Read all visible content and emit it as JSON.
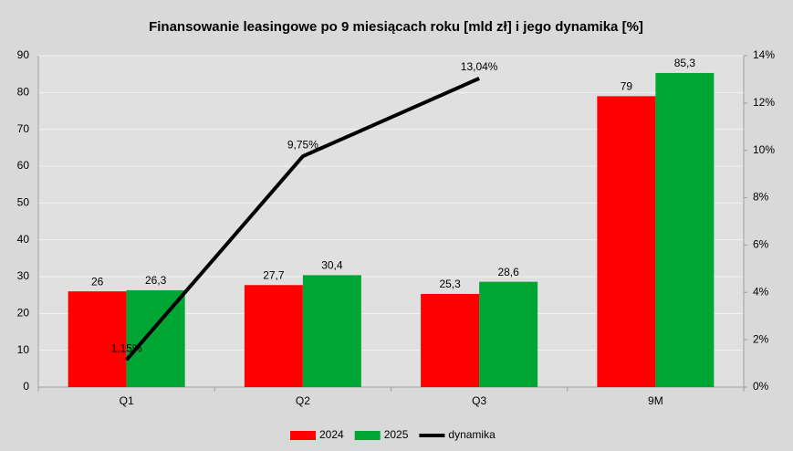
{
  "chart_data": {
    "type": "bar",
    "title": "Finansowanie leasingowe po 9 miesiącach roku [mld zł] i jego dynamika [%]",
    "categories": [
      "Q1",
      "Q2",
      "Q3",
      "9M"
    ],
    "series": [
      {
        "name": "2024",
        "color": "#ff0000",
        "values": [
          26,
          27.7,
          25.3,
          79
        ],
        "value_labels": [
          "26",
          "27,7",
          "25,3",
          "79"
        ]
      },
      {
        "name": "2025",
        "color": "#00a633",
        "values": [
          26.3,
          30.4,
          28.6,
          85.3
        ],
        "value_labels": [
          "26,3",
          "30,4",
          "28,6",
          "85,3"
        ]
      },
      {
        "name": "dynamika",
        "type": "line",
        "axis": "y2",
        "color": "#000000",
        "values": [
          1.15,
          9.75,
          13.04,
          null
        ],
        "value_labels": [
          "1,15%",
          "9,75%",
          "13,04%",
          null
        ]
      }
    ],
    "ylim": [
      0,
      90
    ],
    "yticks": [
      0,
      10,
      20,
      30,
      40,
      50,
      60,
      70,
      80,
      90
    ],
    "y2lim": [
      0,
      14
    ],
    "y2ticks": [
      {
        "value": 0,
        "label": "0%"
      },
      {
        "value": 2,
        "label": "2%"
      },
      {
        "value": 4,
        "label": "4%"
      },
      {
        "value": 6,
        "label": "6%"
      },
      {
        "value": 8,
        "label": "8%"
      },
      {
        "value": 10,
        "label": "10%"
      },
      {
        "value": 12,
        "label": "12%"
      },
      {
        "value": 14,
        "label": "14%"
      }
    ],
    "grid": true,
    "legend": "bottom"
  }
}
